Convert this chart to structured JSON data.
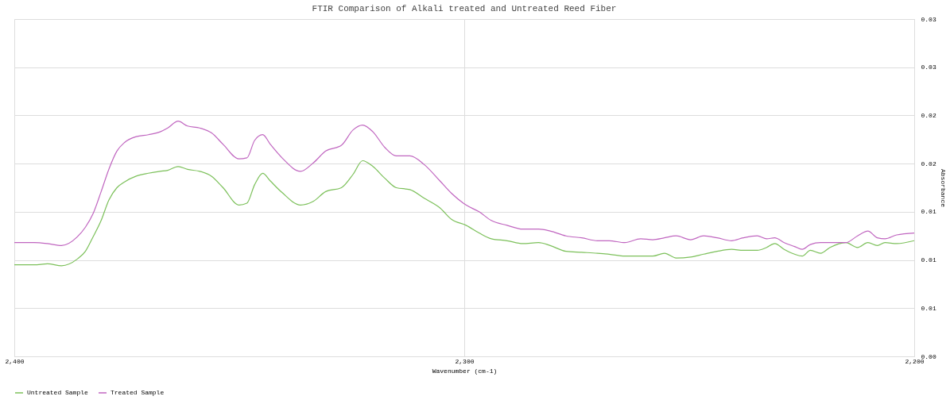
{
  "chart_data": {
    "type": "line",
    "title": "FTIR Comparison of Alkali treated and Untreated Reed Fiber",
    "xlabel": "Wavenumber (cm-1)",
    "ylabel": "Absorbance",
    "x": [
      2400,
      2395.6,
      2392.6,
      2389.5,
      2386.0,
      2384.2,
      2382.5,
      2380.7,
      2379.0,
      2377.2,
      2375.5,
      2372.9,
      2370.2,
      2367.6,
      2365.9,
      2363.6,
      2361.5,
      2358.8,
      2356.2,
      2353.6,
      2350.1,
      2348.3,
      2346.6,
      2344.8,
      2343.1,
      2340.5,
      2336.4,
      2333.5,
      2330.8,
      2327.3,
      2324.7,
      2322.6,
      2320.3,
      2317.7,
      2315.1,
      2312.1,
      2308.9,
      2305.4,
      2302.8,
      2299.6,
      2296.7,
      2294.0,
      2290.5,
      2287.0,
      2283.5,
      2280.9,
      2277.4,
      2273.9,
      2270.4,
      2267.8,
      2264.3,
      2260.8,
      2258.1,
      2255.5,
      2252.9,
      2249.7,
      2246.8,
      2243.8,
      2240.6,
      2238.0,
      2234.9,
      2232.8,
      2231.0,
      2228.9,
      2226.6,
      2224.9,
      2223.1,
      2220.8,
      2218.7,
      2215.2,
      2212.6,
      2210.3,
      2208.2,
      2206.5,
      2203.9,
      2200
    ],
    "series": [
      {
        "name": "Untreated Sample",
        "color": "#7cc05a",
        "values": [
          0.0095,
          0.0095,
          0.0096,
          0.0094,
          0.0101,
          0.0109,
          0.0124,
          0.0141,
          0.0162,
          0.0175,
          0.0181,
          0.0187,
          0.019,
          0.0192,
          0.0193,
          0.0197,
          0.0194,
          0.0192,
          0.0187,
          0.0175,
          0.0157,
          0.0159,
          0.0178,
          0.019,
          0.0182,
          0.017,
          0.0157,
          0.0161,
          0.0171,
          0.0175,
          0.0189,
          0.0203,
          0.0197,
          0.0185,
          0.0175,
          0.0173,
          0.0164,
          0.0154,
          0.0142,
          0.0136,
          0.0128,
          0.0122,
          0.012,
          0.0117,
          0.0118,
          0.0115,
          0.0109,
          0.0108,
          0.0107,
          0.0106,
          0.0104,
          0.0104,
          0.0104,
          0.0107,
          0.0102,
          0.0103,
          0.0106,
          0.0109,
          0.0111,
          0.011,
          0.011,
          0.0113,
          0.0117,
          0.0111,
          0.0106,
          0.0104,
          0.011,
          0.0107,
          0.0113,
          0.0118,
          0.0113,
          0.0118,
          0.0115,
          0.0118,
          0.0117,
          0.012
        ]
      },
      {
        "name": "Treated Sample",
        "color": "#c066c0",
        "values": [
          0.0118,
          0.0118,
          0.0117,
          0.0115,
          0.0124,
          0.0134,
          0.0148,
          0.0171,
          0.0194,
          0.0213,
          0.0222,
          0.0228,
          0.023,
          0.0233,
          0.0237,
          0.0244,
          0.0239,
          0.0237,
          0.0232,
          0.022,
          0.0205,
          0.0206,
          0.0224,
          0.023,
          0.022,
          0.0206,
          0.0192,
          0.0201,
          0.0213,
          0.0219,
          0.0235,
          0.024,
          0.0233,
          0.0217,
          0.0208,
          0.0208,
          0.0199,
          0.0182,
          0.0169,
          0.0157,
          0.015,
          0.0141,
          0.0136,
          0.0132,
          0.0132,
          0.013,
          0.0125,
          0.0123,
          0.012,
          0.012,
          0.0118,
          0.0122,
          0.0121,
          0.0123,
          0.0125,
          0.0121,
          0.0125,
          0.0123,
          0.012,
          0.0123,
          0.0125,
          0.0122,
          0.0123,
          0.0118,
          0.0114,
          0.0111,
          0.0116,
          0.0118,
          0.0118,
          0.0118,
          0.0125,
          0.013,
          0.0123,
          0.0122,
          0.0126,
          0.0128
        ]
      }
    ],
    "xlim": [
      2400,
      2200
    ],
    "xticks": [
      {
        "value": 2400,
        "label": "2,400"
      },
      {
        "value": 2300,
        "label": "2,300"
      },
      {
        "value": 2200,
        "label": "2,200"
      }
    ],
    "ylim": [
      0,
      0.035
    ],
    "yticks": [
      {
        "value": 0,
        "label": "0.00"
      },
      {
        "value": 0.005,
        "label": "0.01"
      },
      {
        "value": 0.01,
        "label": "0.01"
      },
      {
        "value": 0.015,
        "label": "0.01"
      },
      {
        "value": 0.02,
        "label": "0.02"
      },
      {
        "value": 0.025,
        "label": "0.02"
      },
      {
        "value": 0.03,
        "label": "0.03"
      },
      {
        "value": 0.035,
        "label": "0.03"
      }
    ],
    "grid": true,
    "legend": "bottom",
    "marker": "none",
    "line_style": "solid"
  }
}
